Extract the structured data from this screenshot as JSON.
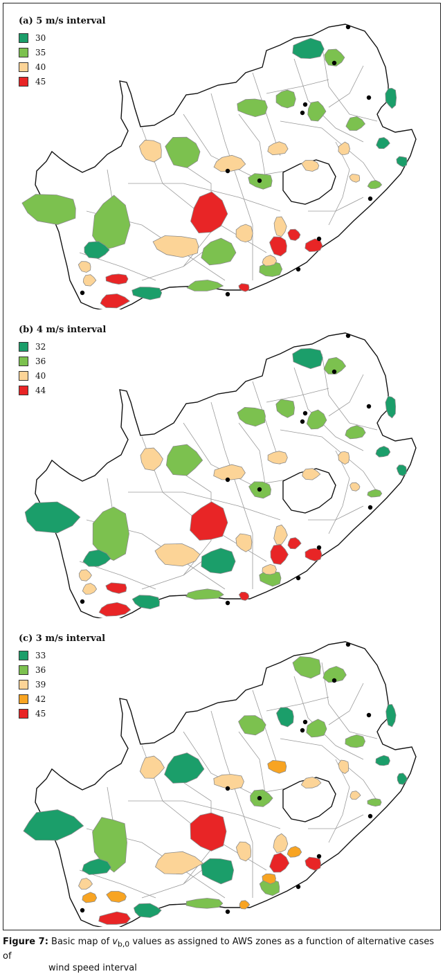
{
  "panels": [
    {
      "title": "(a) 5 m/s interval",
      "legend": [
        {
          "value": "30",
          "color": "#1b9e6a"
        },
        {
          "value": "35",
          "color": "#7cc14f"
        },
        {
          "value": "40",
          "color": "#fcd497"
        },
        {
          "value": "45",
          "color": "#e82526"
        }
      ]
    },
    {
      "title": "(b) 4 m/s interval",
      "legend": [
        {
          "value": "32",
          "color": "#1b9e6a"
        },
        {
          "value": "36",
          "color": "#7cc14f"
        },
        {
          "value": "40",
          "color": "#fcd497"
        },
        {
          "value": "44",
          "color": "#e82526"
        }
      ]
    },
    {
      "title": "(c) 3 m/s interval",
      "legend": [
        {
          "value": "33",
          "color": "#1b9e6a"
        },
        {
          "value": "36",
          "color": "#7cc14f"
        },
        {
          "value": "39",
          "color": "#fcd497"
        },
        {
          "value": "42",
          "color": "#f8a422"
        },
        {
          "value": "45",
          "color": "#e82526"
        }
      ]
    }
  ],
  "caption": {
    "label": "Figure 7:",
    "text_pre": "Basic map of ",
    "var": "v",
    "sub": "b,0",
    "text_post": " values as assigned to AWS zones as a function of alternative cases of",
    "line2": "wind speed interval"
  }
}
